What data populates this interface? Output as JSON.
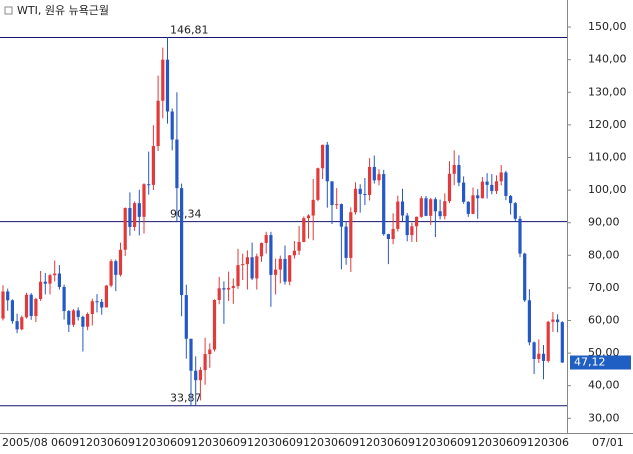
{
  "chart_data": {
    "type": "candlestick",
    "title": "WTI, 원유 뉴욕근월",
    "ylim": [
      25.5,
      158.3
    ],
    "yticks": [
      {
        "value": 150,
        "label": "150,00"
      },
      {
        "value": 140,
        "label": "140,00"
      },
      {
        "value": 130,
        "label": "130,00"
      },
      {
        "value": 120,
        "label": "120,00"
      },
      {
        "value": 110,
        "label": "110,00"
      },
      {
        "value": 100,
        "label": "100,00"
      },
      {
        "value": 90,
        "label": "90,00"
      },
      {
        "value": 80,
        "label": "80,00"
      },
      {
        "value": 70,
        "label": "70,00"
      },
      {
        "value": 60,
        "label": "60,00"
      },
      {
        "value": 50,
        "label": "50,00"
      },
      {
        "value": 40,
        "label": "40,00"
      },
      {
        "value": 30,
        "label": "30,00"
      }
    ],
    "x_labels": [
      "2005/08",
      "06",
      "09",
      "12",
      "03",
      "06",
      "09",
      "12",
      "03",
      "06",
      "09",
      "12",
      "03",
      "06",
      "09",
      "12",
      "03",
      "06",
      "09",
      "12",
      "03",
      "06",
      "09",
      "12",
      "03",
      "06",
      "09",
      "12",
      "03",
      "06",
      "09",
      "12",
      "03",
      "06",
      "09",
      "12",
      "03",
      "06",
      "07/01"
    ],
    "up_color": "#e23a3a",
    "down_color": "#2458c6",
    "line_color": "#14146e",
    "hlines": [
      {
        "value": 146.81,
        "label": "146,81"
      },
      {
        "value": 90.34,
        "label": "90,34"
      },
      {
        "value": 33.87,
        "label": "33,87"
      }
    ],
    "last_price": {
      "value": 47.12,
      "label": "47,12",
      "color": "#1f5fc4"
    },
    "open": [
      60.6,
      68.9,
      66.2,
      59.8,
      57.3,
      61.0,
      67.9,
      61.4,
      66.6,
      71.9,
      71.3,
      73.9,
      74.4,
      70.3,
      62.9,
      58.7,
      63.1,
      61.1,
      58.1,
      62.0,
      65.9,
      65.7,
      64.0,
      70.7,
      78.2,
      74.0,
      81.7,
      94.5,
      88.7,
      96.0,
      91.8,
      101.8,
      101.6,
      113.5,
      127.4,
      140.0,
      124.1,
      115.5,
      100.6,
      67.8,
      54.4,
      44.6,
      41.7,
      44.8,
      49.7,
      51.1,
      66.3,
      69.9,
      69.5,
      70.0,
      70.6,
      77.0,
      77.3,
      79.4,
      72.9,
      79.7,
      83.8,
      86.2,
      74.0,
      75.6,
      78.9,
      71.9,
      80.0,
      81.4,
      84.1,
      91.4,
      92.2,
      97.0,
      106.7,
      113.9,
      102.7,
      95.4,
      95.7,
      88.8,
      79.2,
      93.2,
      100.4,
      98.8,
      98.5,
      107.1,
      103.0,
      104.9,
      86.5,
      85.0,
      88.1,
      96.5,
      92.2,
      86.2,
      88.9,
      91.8,
      97.5,
      92.1,
      97.2,
      93.5,
      92.0,
      96.6,
      105.0,
      107.7,
      102.3,
      96.4,
      92.7,
      98.4,
      97.5,
      102.6,
      101.6,
      99.7,
      102.7,
      105.4,
      98.2,
      96.0,
      91.2,
      80.5,
      66.2,
      53.3,
      48.2,
      49.8,
      47.6,
      59.6,
      60.3,
      59.5
    ],
    "high": [
      70.8,
      69.8,
      66.5,
      62.1,
      61.5,
      68.5,
      68.4,
      67.0,
      75.2,
      74.6,
      74.3,
      78.4,
      77.0,
      71.0,
      63.2,
      63.5,
      64.0,
      61.5,
      62.5,
      66.7,
      68.1,
      66.6,
      70.9,
      78.8,
      78.7,
      83.9,
      94.7,
      99.3,
      96.5,
      100.1,
      102.1,
      111.8,
      119.9,
      135.1,
      143.7,
      146.81,
      125.0,
      130.0,
      102.0,
      71.0,
      54.4,
      49.0,
      45.7,
      54.7,
      53.0,
      66.5,
      73.4,
      72.0,
      75.0,
      72.9,
      82.0,
      80.5,
      81.5,
      83.9,
      80.5,
      83.9,
      87.2,
      87.2,
      79.0,
      79.9,
      83.0,
      80.1,
      84.4,
      89.0,
      91.9,
      92.6,
      103.4,
      106.9,
      113.9,
      114.8,
      102.5,
      100.6,
      95.9,
      90.5,
      94.7,
      102.4,
      101.8,
      103.7,
      109.8,
      110.6,
      106.4,
      106.2,
      86.6,
      92.9,
      98.3,
      100.4,
      93.0,
      90.0,
      91.9,
      98.2,
      98.2,
      97.6,
      97.8,
      97.1,
      99.0,
      108.9,
      112.2,
      110.7,
      104.2,
      96.6,
      100.8,
      100.3,
      104.0,
      105.2,
      104.9,
      104.5,
      107.7,
      105.9,
      98.5,
      96.3,
      92.1,
      80.8,
      69.6,
      53.6,
      54.2,
      52.5,
      59.9,
      62.6,
      61.9,
      59.8
    ],
    "low": [
      60.0,
      63.0,
      59.0,
      56.1,
      57.0,
      60.6,
      60.2,
      59.5,
      66.0,
      68.0,
      68.0,
      72.0,
      69.5,
      60.3,
      56.5,
      58.0,
      60.0,
      50.5,
      57.0,
      58.5,
      62.5,
      61.8,
      64.0,
      70.2,
      69.0,
      73.5,
      79.8,
      86.0,
      87.5,
      86.1,
      86.7,
      98.6,
      100.0,
      112.0,
      122.0,
      120.4,
      112.2,
      90.5,
      61.3,
      48.3,
      33.87,
      34.0,
      35.5,
      40.3,
      45.5,
      50.5,
      65.0,
      59.0,
      66.0,
      65.1,
      69.7,
      72.4,
      69.5,
      72.4,
      69.5,
      78.0,
      80.5,
      64.2,
      68.0,
      71.4,
      71.0,
      70.8,
      79.0,
      80.1,
      84.0,
      85.1,
      84.6,
      96.6,
      103.4,
      94.6,
      89.6,
      94.2,
      75.7,
      77.1,
      74.9,
      92.5,
      93.1,
      95.4,
      96.8,
      102.0,
      101.5,
      86.0,
      77.3,
      83.4,
      87.3,
      90.5,
      84.3,
      84.1,
      84.1,
      91.5,
      92.0,
      89.3,
      85.6,
      91.0,
      91.0,
      96.0,
      101.5,
      101.2,
      95.8,
      91.8,
      92.6,
      91.2,
      97.4,
      97.4,
      98.7,
      98.8,
      101.4,
      96.9,
      92.5,
      90.4,
      79.4,
      65.7,
      52.4,
      43.6,
      47.0,
      42.0,
      47.1,
      56.5,
      56.4,
      47.0
    ],
    "close": [
      68.9,
      66.2,
      59.8,
      57.3,
      61.0,
      67.9,
      61.4,
      66.6,
      71.9,
      71.3,
      73.9,
      74.4,
      70.3,
      62.9,
      58.7,
      63.1,
      61.1,
      58.1,
      62.0,
      65.9,
      65.7,
      64.0,
      70.7,
      78.2,
      74.0,
      81.7,
      94.5,
      88.7,
      96.0,
      91.8,
      101.8,
      101.6,
      113.5,
      127.4,
      140.0,
      124.1,
      115.5,
      100.6,
      67.8,
      54.4,
      44.6,
      41.7,
      44.8,
      49.7,
      51.1,
      66.3,
      69.9,
      69.5,
      70.0,
      70.6,
      77.0,
      77.3,
      79.4,
      72.9,
      79.7,
      83.8,
      86.2,
      74.0,
      75.6,
      78.9,
      71.9,
      80.0,
      81.4,
      84.1,
      91.4,
      92.2,
      97.0,
      106.7,
      113.9,
      102.7,
      95.4,
      95.7,
      88.8,
      79.2,
      93.2,
      100.4,
      98.8,
      98.5,
      107.1,
      103.0,
      104.9,
      86.5,
      85.0,
      88.1,
      96.5,
      92.2,
      86.2,
      88.9,
      91.8,
      97.5,
      92.1,
      97.2,
      93.5,
      92.0,
      96.6,
      105.0,
      107.7,
      102.3,
      96.4,
      92.7,
      98.4,
      97.5,
      102.6,
      101.6,
      99.7,
      102.7,
      105.4,
      98.2,
      96.0,
      91.2,
      80.5,
      66.2,
      53.3,
      48.2,
      49.8,
      47.6,
      59.6,
      60.3,
      59.5,
      47.12
    ]
  }
}
